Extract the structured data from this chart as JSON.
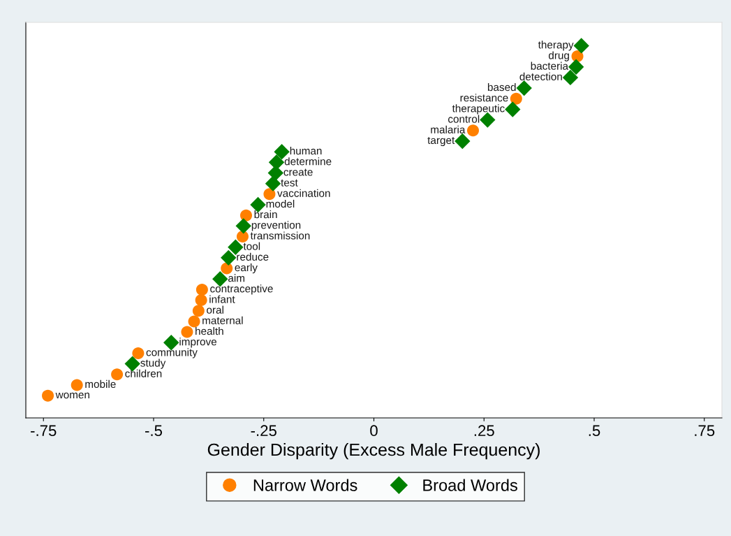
{
  "chart_data": {
    "type": "scatter",
    "orientation": "horizontal",
    "xlabel": "Gender Disparity (Excess Male Frequency)",
    "categories": [
      "therapy",
      "drug",
      "bacteria",
      "detection",
      "based",
      "resistance",
      "therapeutic",
      "control",
      "malaria",
      "target",
      "human",
      "determine",
      "create",
      "test",
      "vaccination",
      "model",
      "brain",
      "prevention",
      "transmission",
      "tool",
      "reduce",
      "early",
      "aim",
      "contraceptive",
      "infant",
      "oral",
      "maternal",
      "health",
      "improve",
      "community",
      "study",
      "children",
      "mobile",
      "women"
    ],
    "series": [
      {
        "name": "Narrow Words",
        "color": "#ff8000",
        "marker": "circle",
        "values": [
          null,
          0.462,
          null,
          null,
          null,
          0.323,
          null,
          null,
          0.225,
          null,
          null,
          null,
          null,
          null,
          -0.237,
          null,
          -0.29,
          null,
          -0.298,
          null,
          null,
          -0.334,
          null,
          -0.39,
          -0.392,
          -0.398,
          -0.408,
          -0.424,
          null,
          -0.535,
          null,
          -0.583,
          -0.674,
          -0.74
        ]
      },
      {
        "name": "Broad Words",
        "color": "#008000",
        "marker": "diamond",
        "values": [
          0.471,
          null,
          0.459,
          0.446,
          0.341,
          null,
          0.315,
          0.258,
          null,
          0.201,
          -0.209,
          -0.221,
          -0.223,
          -0.229,
          null,
          -0.263,
          null,
          -0.296,
          null,
          -0.314,
          -0.33,
          null,
          -0.349,
          null,
          null,
          null,
          null,
          null,
          -0.46,
          null,
          -0.548,
          null,
          null,
          null
        ]
      }
    ],
    "xlim": [
      -0.79,
      0.79
    ],
    "xticks": [
      {
        "value": -0.75,
        "label": "-.75"
      },
      {
        "value": -0.5,
        "label": "-.5"
      },
      {
        "value": -0.25,
        "label": "-.25"
      },
      0,
      {
        "value": 0.25,
        "label": ".25"
      },
      {
        "value": 0.5,
        "label": ".5"
      },
      {
        "value": 0.75,
        "label": ".75"
      }
    ],
    "tick_labels": "x",
    "grid": false,
    "legend": "bottom"
  }
}
